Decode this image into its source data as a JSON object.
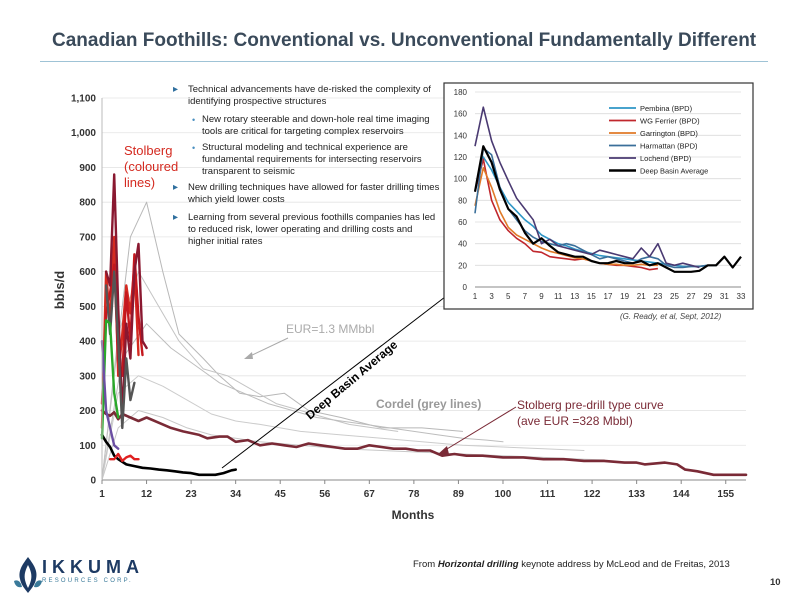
{
  "slide": {
    "title": "Canadian Foothills: Conventional vs. Unconventional Fundamentally Different",
    "page_number": "10",
    "source_prefix": "From ",
    "source_emph": "Horizontal drilling",
    "source_suffix": " keynote address by McLeod and de Freitas, 2013",
    "logo_word": "IKKUMA",
    "logo_sub": "RESOURCES CORP.",
    "colors": {
      "title": "#3a4a5a",
      "accent": "#2e6f9e",
      "rule": "#9fc3d6"
    }
  },
  "bullets": [
    {
      "text": "Technical advancements have de-risked the complexity of identifying prospective structures",
      "sub": [
        "New rotary steerable and down-hole real time imaging tools are critical for targeting complex reservoirs",
        "Structural modeling and technical experience are fundamental requirements for intersecting reservoirs transparent to seismic"
      ]
    },
    {
      "text": "New drilling techniques have allowed for faster drilling times which yield lower costs",
      "sub": []
    },
    {
      "text": "Learning from several previous foothills companies has led to reduced risk, lower operating and drilling costs and higher initial rates",
      "sub": []
    }
  ],
  "chart_data": [
    {
      "type": "line",
      "xlabel": "Months",
      "ylabel": "bbls/d",
      "xlim": [
        1,
        160
      ],
      "ylim": [
        0,
        1100
      ],
      "xticks": [
        "1",
        "12",
        "23",
        "34",
        "45",
        "56",
        "67",
        "78",
        "89",
        "100",
        "111",
        "122",
        "133",
        "144",
        "155"
      ],
      "yticks": [
        "0",
        "100",
        "200",
        "300",
        "400",
        "500",
        "600",
        "700",
        "800",
        "900",
        "1,000",
        "1,100"
      ],
      "annotations": {
        "stolberg": "Stolberg (coloured lines)",
        "eur": "EUR=1.3 MMbbl",
        "deep_basin": "Deep Basin Average",
        "cordel": "Cordel (grey lines)",
        "type_curve": "Stolberg pre-drill type curve (ave EUR =328 Mbbl)"
      },
      "series": [
        {
          "role": "stolberg-type-curve",
          "color": "#7a2a36",
          "x": [
            1,
            2,
            3,
            4,
            5,
            6,
            8,
            10,
            12,
            15,
            18,
            21,
            23,
            25,
            27,
            30,
            32,
            34,
            37,
            40,
            43,
            46,
            49,
            52,
            55,
            58,
            61,
            64,
            67,
            70,
            73,
            76,
            79,
            82,
            85,
            88,
            91,
            95,
            100,
            105,
            110,
            115,
            120,
            125,
            130,
            133,
            135,
            140,
            143,
            145,
            148,
            152,
            155,
            160
          ],
          "y": [
            200,
            190,
            185,
            195,
            175,
            190,
            180,
            170,
            180,
            165,
            150,
            140,
            135,
            130,
            120,
            125,
            125,
            110,
            115,
            100,
            105,
            100,
            95,
            105,
            100,
            95,
            90,
            90,
            100,
            95,
            90,
            90,
            85,
            85,
            70,
            75,
            70,
            70,
            65,
            65,
            60,
            60,
            55,
            55,
            50,
            50,
            45,
            50,
            45,
            30,
            25,
            15,
            15,
            15
          ]
        },
        {
          "role": "deep-basin-average",
          "color": "#000000",
          "x": [
            1,
            2,
            3,
            4,
            5,
            7,
            9,
            11,
            13,
            15,
            17,
            19,
            21,
            23,
            25,
            27,
            29,
            31,
            33,
            34
          ],
          "y": [
            130,
            110,
            95,
            70,
            60,
            45,
            40,
            35,
            33,
            30,
            28,
            25,
            22,
            20,
            15,
            15,
            15,
            20,
            28,
            30
          ]
        },
        {
          "role": "stolberg-well",
          "color": "#d42a20",
          "x": [
            1,
            2,
            3,
            4,
            5,
            6,
            7,
            8,
            9,
            10
          ],
          "y": [
            150,
            600,
            450,
            700,
            300,
            420,
            560,
            480,
            620,
            360
          ]
        },
        {
          "role": "stolberg-well",
          "color": "#c4181e",
          "x": [
            1,
            2,
            3,
            4,
            5,
            6,
            7,
            8,
            9,
            10,
            11
          ],
          "y": [
            220,
            480,
            540,
            620,
            350,
            300,
            540,
            400,
            650,
            470,
            360
          ]
        },
        {
          "role": "stolberg-well",
          "color": "#8a1830",
          "x": [
            2,
            3,
            4,
            5,
            6,
            7,
            8,
            9,
            10,
            11,
            12
          ],
          "y": [
            600,
            560,
            880,
            500,
            180,
            450,
            350,
            600,
            680,
            400,
            380
          ]
        },
        {
          "role": "stolberg-well",
          "color": "#555555",
          "x": [
            2,
            3,
            4,
            5,
            6,
            7,
            8,
            9
          ],
          "y": [
            560,
            420,
            600,
            400,
            150,
            350,
            230,
            280
          ]
        },
        {
          "role": "stolberg-well",
          "color": "#2aa82a",
          "x": [
            1,
            2,
            3,
            4,
            5
          ],
          "y": [
            120,
            460,
            450,
            250,
            180
          ]
        },
        {
          "role": "stolberg-well",
          "color": "#6b4fa3",
          "x": [
            1,
            2,
            3,
            4,
            5
          ],
          "y": [
            400,
            200,
            150,
            100,
            90
          ]
        },
        {
          "role": "stolberg-well",
          "color": "#e02020",
          "x": [
            3,
            4,
            5,
            6,
            7,
            8,
            9,
            10
          ],
          "y": [
            60,
            60,
            75,
            55,
            65,
            70,
            60,
            60
          ]
        },
        {
          "role": "cordel-well",
          "color": "#b8b8b8",
          "x": [
            1,
            4,
            8,
            12,
            16,
            20,
            26,
            30,
            35,
            40,
            46,
            52,
            60,
            70,
            80,
            90
          ],
          "y": [
            0,
            300,
            700,
            800,
            600,
            420,
            350,
            300,
            250,
            240,
            250,
            200,
            180,
            150,
            150,
            140
          ]
        },
        {
          "role": "cordel-well",
          "color": "#c4c4c4",
          "x": [
            1,
            5,
            10,
            15,
            20,
            26,
            32,
            38,
            44,
            50,
            56,
            62,
            68,
            74
          ],
          "y": [
            0,
            420,
            600,
            500,
            400,
            320,
            300,
            260,
            220,
            200,
            180,
            160,
            150,
            140
          ]
        },
        {
          "role": "cordel-well",
          "color": "#bdbdbd",
          "x": [
            1,
            6,
            12,
            18,
            24,
            30,
            36,
            42,
            48,
            54,
            60,
            66,
            72,
            78,
            84,
            90,
            96,
            100
          ],
          "y": [
            0,
            350,
            450,
            380,
            330,
            280,
            250,
            220,
            200,
            180,
            170,
            160,
            150,
            140,
            130,
            120,
            115,
            110
          ]
        },
        {
          "role": "cordel-well",
          "color": "#cccccc",
          "x": [
            1,
            5,
            10,
            16,
            22,
            28,
            34,
            40,
            50,
            60,
            70,
            80,
            90,
            100,
            110,
            120
          ],
          "y": [
            0,
            250,
            300,
            270,
            230,
            190,
            170,
            160,
            140,
            130,
            120,
            110,
            100,
            95,
            90,
            85
          ]
        },
        {
          "role": "cordel-well",
          "color": "#c8c8c8",
          "x": [
            1,
            5,
            10,
            16,
            22,
            28,
            34,
            40,
            50,
            60,
            70,
            80,
            90,
            100,
            110,
            120,
            125
          ],
          "y": [
            0,
            150,
            200,
            180,
            150,
            130,
            120,
            110,
            100,
            90,
            85,
            80,
            75,
            70,
            65,
            60,
            58
          ]
        }
      ]
    },
    {
      "type": "line",
      "xlim": [
        1,
        33
      ],
      "ylim": [
        0,
        180
      ],
      "xticks": [
        "1",
        "3",
        "5",
        "7",
        "9",
        "11",
        "13",
        "15",
        "17",
        "19",
        "21",
        "23",
        "25",
        "27",
        "29",
        "31",
        "33"
      ],
      "yticks": [
        "0",
        "20",
        "40",
        "60",
        "80",
        "100",
        "120",
        "140",
        "160",
        "180"
      ],
      "citation": "(G. Ready, et al, Sept, 2012)",
      "series": [
        {
          "name": "Pembina (BPD)",
          "color": "#2e96c6",
          "x": [
            1,
            2,
            3,
            4,
            5,
            6,
            7,
            8,
            9,
            10,
            11,
            12,
            13,
            14,
            15,
            16,
            17,
            18,
            19,
            20,
            21,
            22,
            23,
            24,
            25,
            26,
            27,
            28,
            29,
            30
          ],
          "y": [
            88,
            120,
            108,
            92,
            78,
            70,
            62,
            56,
            48,
            44,
            40,
            38,
            35,
            33,
            31,
            29,
            28,
            27,
            26,
            25,
            24,
            23,
            22,
            21,
            20,
            19,
            19,
            19,
            20,
            20
          ]
        },
        {
          "name": "WG Ferrier (BPD)",
          "color": "#c0272d",
          "x": [
            1,
            2,
            3,
            4,
            5,
            6,
            7,
            8,
            9,
            10,
            11,
            12,
            13,
            14,
            15,
            16,
            17,
            18,
            19,
            20,
            21,
            22,
            23
          ],
          "y": [
            88,
            118,
            80,
            62,
            52,
            45,
            40,
            33,
            32,
            28,
            27,
            26,
            25,
            26,
            24,
            22,
            21,
            20,
            20,
            19,
            18,
            16,
            17
          ]
        },
        {
          "name": "Garrington (BPD)",
          "color": "#e07a28",
          "x": [
            1,
            2,
            3,
            4,
            5,
            6,
            7,
            8,
            9,
            10,
            11,
            12,
            13,
            14,
            15,
            16,
            17,
            18,
            19,
            20,
            21,
            22,
            23
          ],
          "y": [
            75,
            110,
            92,
            70,
            55,
            48,
            44,
            40,
            36,
            33,
            31,
            29,
            27,
            26,
            24,
            22,
            21,
            21,
            20,
            20,
            21,
            20,
            20
          ]
        },
        {
          "name": "Harmattan (BPD)",
          "color": "#3a6f9a",
          "x": [
            1,
            2,
            3,
            4,
            5,
            6,
            7,
            8,
            9,
            10,
            11,
            12,
            13,
            14,
            15,
            16,
            17,
            18,
            19,
            20,
            21,
            22,
            23,
            24,
            25,
            26,
            27,
            28,
            29,
            30
          ],
          "y": [
            68,
            128,
            122,
            92,
            72,
            62,
            52,
            46,
            42,
            40,
            38,
            40,
            38,
            34,
            30,
            26,
            28,
            26,
            24,
            22,
            26,
            28,
            26,
            20,
            18,
            18,
            19,
            19,
            20,
            20
          ]
        },
        {
          "name": "Lochend (BPD)",
          "color": "#4a3a72",
          "x": [
            1,
            2,
            3,
            4,
            5,
            6,
            7,
            8,
            9,
            10,
            11,
            12,
            13,
            14,
            15,
            16,
            17,
            18,
            19,
            20,
            21,
            22,
            23,
            24,
            25,
            26,
            27,
            28
          ],
          "y": [
            130,
            166,
            135,
            115,
            98,
            82,
            72,
            62,
            40,
            44,
            38,
            36,
            34,
            32,
            30,
            34,
            32,
            30,
            28,
            26,
            36,
            28,
            40,
            22,
            20,
            22,
            20,
            18
          ]
        },
        {
          "name": "Deep Basin Average",
          "color": "#000000",
          "x": [
            1,
            2,
            3,
            4,
            5,
            6,
            7,
            8,
            9,
            10,
            11,
            12,
            13,
            14,
            15,
            16,
            17,
            18,
            19,
            20,
            21,
            22,
            23,
            24,
            25,
            26,
            27,
            28,
            29,
            30,
            31,
            32,
            33
          ],
          "y": [
            88,
            130,
            115,
            90,
            72,
            65,
            50,
            40,
            45,
            38,
            32,
            30,
            28,
            28,
            24,
            22,
            22,
            24,
            22,
            22,
            24,
            20,
            22,
            18,
            14,
            14,
            14,
            15,
            20,
            20,
            28,
            18,
            28
          ]
        }
      ]
    }
  ]
}
